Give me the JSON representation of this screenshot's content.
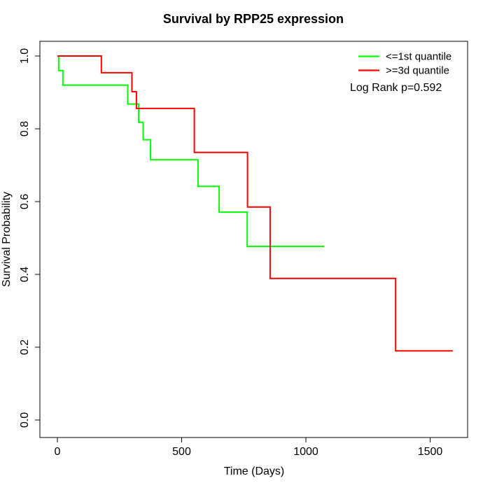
{
  "chart_data": {
    "type": "line",
    "subtype": "kaplan-meier-step",
    "title": "Survival by RPP25 expression",
    "xlabel": "Time (Days)",
    "ylabel": "Survival Probability",
    "xlim": [
      0,
      1600
    ],
    "ylim": [
      0.0,
      1.0
    ],
    "grid": false,
    "legend_position": "top-right",
    "annotation": "Log Rank p=0.592",
    "x_ticks": [
      "0",
      "500",
      "1000",
      "1500"
    ],
    "y_ticks": [
      "0.0",
      "0.2",
      "0.4",
      "0.6",
      "0.8",
      "1.0"
    ],
    "series": [
      {
        "name": "<=1st quantile",
        "color": "#00FF00",
        "points": [
          [
            0,
            1.0
          ],
          [
            5,
            0.96
          ],
          [
            22,
            0.92
          ],
          [
            283,
            0.868
          ],
          [
            327,
            0.818
          ],
          [
            345,
            0.77
          ],
          [
            375,
            0.715
          ],
          [
            566,
            0.642
          ],
          [
            651,
            0.571
          ],
          [
            764,
            0.477
          ],
          [
            1073,
            0.477
          ]
        ]
      },
      {
        "name": ">=3d quantile",
        "color": "#FF0000",
        "points": [
          [
            0,
            1.0
          ],
          [
            177,
            0.954
          ],
          [
            300,
            0.902
          ],
          [
            318,
            0.856
          ],
          [
            551,
            0.735
          ],
          [
            765,
            0.585
          ],
          [
            856,
            0.389
          ],
          [
            1361,
            0.19
          ],
          [
            1591,
            0.19
          ]
        ]
      }
    ]
  }
}
